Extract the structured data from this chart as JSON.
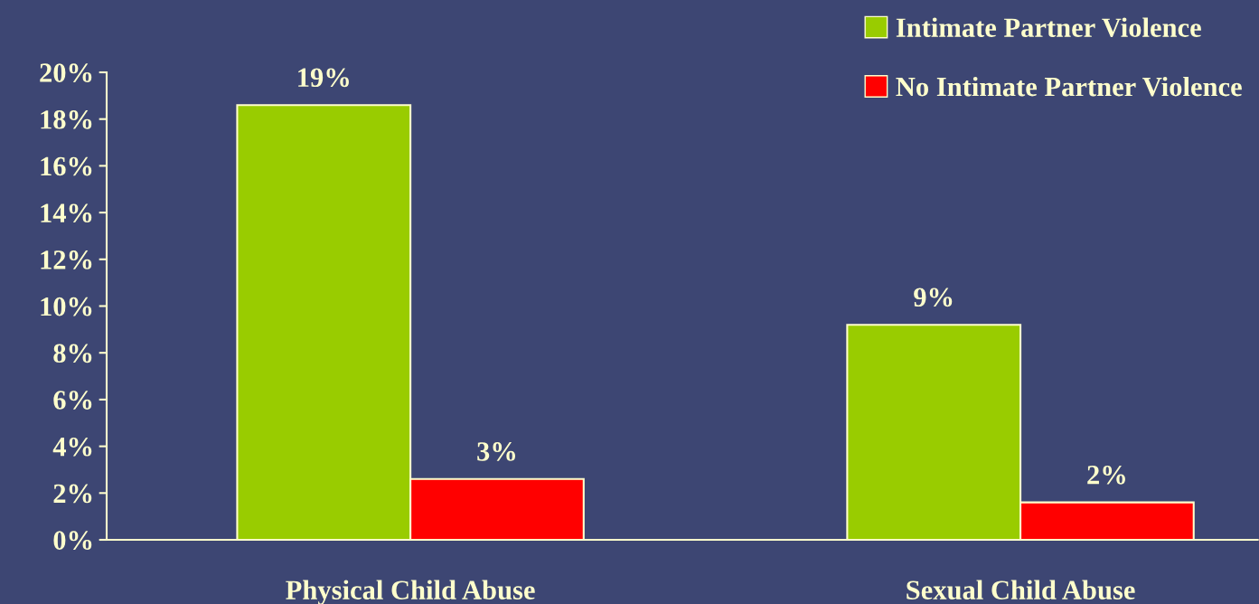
{
  "chart_data": {
    "type": "bar",
    "categories": [
      "Physical Child Abuse",
      "Sexual Child Abuse"
    ],
    "series": [
      {
        "name": "Intimate Partner Violence",
        "color": "#99cc00",
        "values": [
          18.6,
          9.2
        ],
        "value_labels": [
          "19%",
          "9%"
        ]
      },
      {
        "name": "No Intimate Partner Violence",
        "color": "#ff0000",
        "values": [
          2.6,
          1.6
        ],
        "value_labels": [
          "3%",
          "2%"
        ]
      }
    ],
    "ylim": [
      0,
      20
    ],
    "yticks": [
      {
        "value": 0,
        "label": "0%"
      },
      {
        "value": 2,
        "label": "2%"
      },
      {
        "value": 4,
        "label": "4%"
      },
      {
        "value": 6,
        "label": "6%"
      },
      {
        "value": 8,
        "label": "8%"
      },
      {
        "value": 10,
        "label": "10%"
      },
      {
        "value": 12,
        "label": "12%"
      },
      {
        "value": 14,
        "label": "14%"
      },
      {
        "value": 16,
        "label": "16%"
      },
      {
        "value": 18,
        "label": "18%"
      },
      {
        "value": 20,
        "label": "20%"
      }
    ],
    "grid": false,
    "legend": "top right"
  }
}
